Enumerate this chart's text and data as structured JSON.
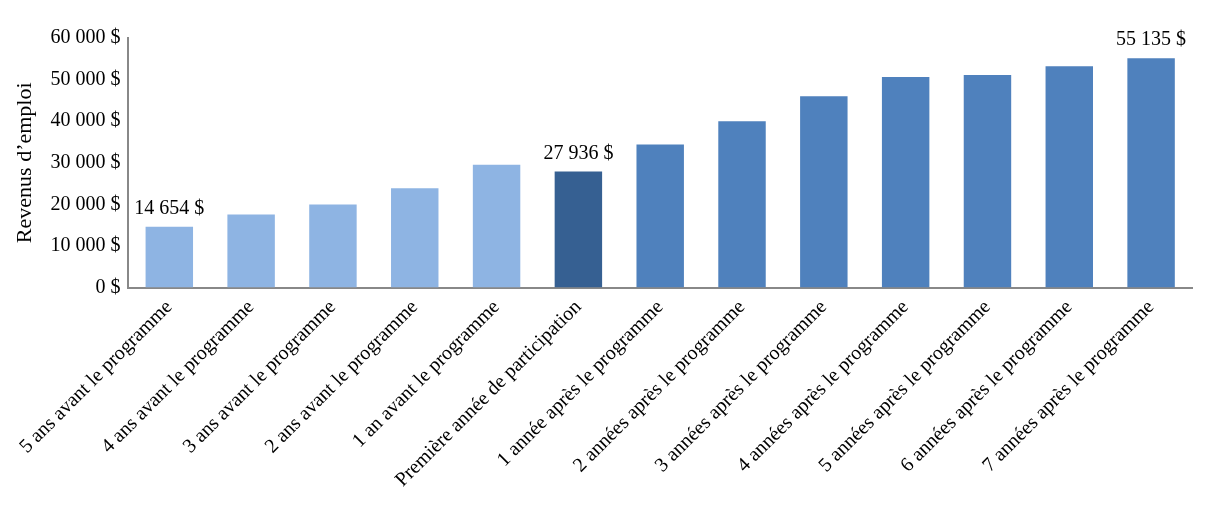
{
  "chart_data": {
    "type": "bar",
    "ylabel": "Revenus d’emploi",
    "categories": [
      "5 ans avant le programme",
      "4 ans avant le programme",
      "3 ans avant le programme",
      "2 ans avant le programme",
      "1 an avant le programme",
      "Première année de participation",
      "1 année après le programme",
      "2 années après le programme",
      "3 années après le programme",
      "4 années après le programme",
      "5 années après le programme",
      "6 années après le programme",
      "7 années après le programme"
    ],
    "values": [
      14654,
      17600,
      20000,
      23900,
      29500,
      27936,
      34400,
      40000,
      46000,
      50600,
      51100,
      53200,
      55135
    ],
    "colors": [
      "#8eb4e3",
      "#8eb4e3",
      "#8eb4e3",
      "#8eb4e3",
      "#8eb4e3",
      "#366092",
      "#4f81bd",
      "#4f81bd",
      "#4f81bd",
      "#4f81bd",
      "#4f81bd",
      "#4f81bd",
      "#4f81bd"
    ],
    "value_labels": [
      "14 654 $",
      null,
      null,
      null,
      null,
      "27 936 $",
      null,
      null,
      null,
      null,
      null,
      null,
      "55 135 $"
    ],
    "ylim": [
      0,
      60000
    ],
    "yticks": [
      {
        "value": 0,
        "label": "0 $"
      },
      {
        "value": 10000,
        "label": "10 000 $"
      },
      {
        "value": 20000,
        "label": "20 000 $"
      },
      {
        "value": 30000,
        "label": "30 000 $"
      },
      {
        "value": 40000,
        "label": "40 000 $"
      },
      {
        "value": 50000,
        "label": "50 000 $"
      },
      {
        "value": 60000,
        "label": "60 000 $"
      }
    ],
    "grid": false,
    "legend": false
  }
}
